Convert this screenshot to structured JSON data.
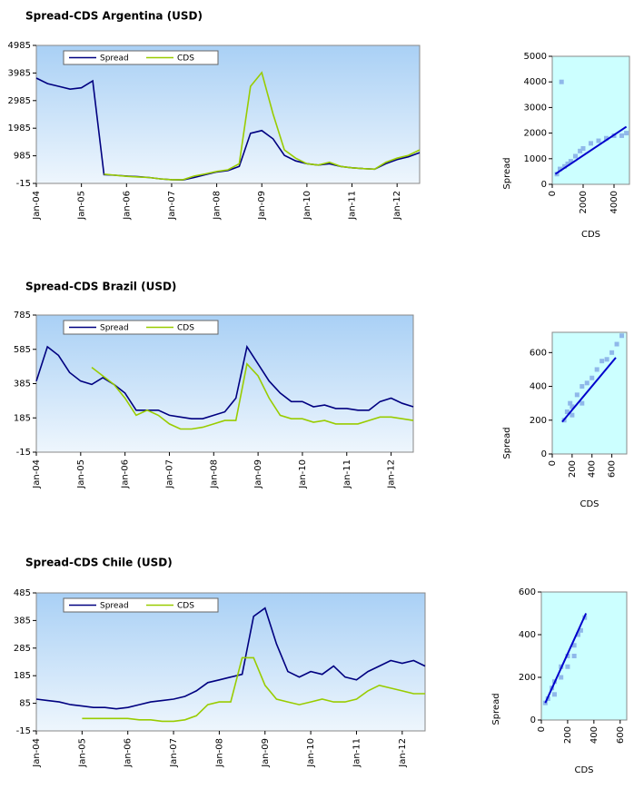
{
  "chart_data": [
    {
      "type": "line",
      "title": "Spread-CDS Argentina (USD)",
      "categories": [
        "Jan-04",
        null,
        null,
        null,
        "Jan-05",
        null,
        null,
        null,
        "Jan-06",
        null,
        null,
        null,
        "Jan-07",
        null,
        null,
        null,
        "Jan-08",
        null,
        null,
        null,
        "Jan-09",
        null,
        null,
        null,
        "Jan-10",
        null,
        null,
        null,
        "Jan-11",
        null,
        null,
        null,
        "Jan-12",
        null,
        null
      ],
      "series": [
        {
          "name": "Spread",
          "color": "#000080",
          "values": [
            3800,
            3600,
            3500,
            3400,
            3450,
            3700,
            300,
            280,
            250,
            230,
            200,
            150,
            120,
            110,
            200,
            300,
            400,
            450,
            600,
            1800,
            1900,
            1600,
            1000,
            800,
            700,
            650,
            700,
            600,
            550,
            520,
            500,
            700,
            850,
            950,
            1100
          ]
        },
        {
          "name": "CDS",
          "color": "#99cc00",
          "values": [
            null,
            null,
            null,
            null,
            null,
            null,
            320,
            280,
            240,
            220,
            200,
            150,
            120,
            120,
            250,
            330,
            420,
            480,
            700,
            3500,
            4000,
            2500,
            1200,
            900,
            700,
            650,
            750,
            600,
            550,
            520,
            500,
            750,
            900,
            1000,
            1200
          ]
        }
      ],
      "ylim": [
        -15,
        4985
      ],
      "yticks": [
        -15,
        985,
        1985,
        2985,
        3985,
        4985
      ]
    },
    {
      "type": "scatter",
      "xlabel": "CDS",
      "ylabel": "Spread",
      "color": "#8fb8ea",
      "fit_color": "#0000cc",
      "points": {
        "x": [
          300,
          500,
          800,
          1000,
          1200,
          1500,
          1800,
          2000,
          2500,
          3000,
          3500,
          4000,
          4500,
          600,
          4800
        ],
        "y": [
          400,
          600,
          700,
          800,
          900,
          1100,
          1300,
          1400,
          1600,
          1700,
          1800,
          1900,
          1900,
          4000,
          2000
        ]
      },
      "fit": {
        "x": [
          200,
          4800
        ],
        "y": [
          400,
          2250
        ]
      },
      "xlim": [
        0,
        5000
      ],
      "xticks": [
        0,
        2000,
        4000
      ],
      "ylim": [
        0,
        5000
      ],
      "yticks": [
        0,
        1000,
        2000,
        3000,
        4000,
        5000
      ]
    },
    {
      "type": "line",
      "title": "Spread-CDS Brazil (USD)",
      "categories": [
        "Jan-04",
        null,
        null,
        null,
        "Jan-05",
        null,
        null,
        null,
        "Jan-06",
        null,
        null,
        null,
        "Jan-07",
        null,
        null,
        null,
        "Jan-08",
        null,
        null,
        null,
        "Jan-09",
        null,
        null,
        null,
        "Jan-10",
        null,
        null,
        null,
        "Jan-11",
        null,
        null,
        null,
        "Jan-12",
        null,
        null
      ],
      "series": [
        {
          "name": "Spread",
          "color": "#000080",
          "values": [
            400,
            600,
            550,
            450,
            400,
            380,
            420,
            380,
            330,
            230,
            230,
            230,
            200,
            190,
            180,
            180,
            200,
            220,
            300,
            600,
            500,
            400,
            330,
            280,
            280,
            250,
            260,
            240,
            240,
            230,
            230,
            280,
            300,
            270,
            250
          ]
        },
        {
          "name": "CDS",
          "color": "#99cc00",
          "values": [
            null,
            null,
            null,
            null,
            null,
            480,
            430,
            380,
            300,
            200,
            230,
            200,
            150,
            120,
            120,
            130,
            150,
            170,
            170,
            500,
            430,
            300,
            200,
            180,
            180,
            160,
            170,
            150,
            150,
            150,
            170,
            190,
            190,
            180,
            170
          ]
        }
      ],
      "ylim": [
        -15,
        785
      ],
      "yticks": [
        -15,
        185,
        385,
        585,
        785
      ]
    },
    {
      "type": "scatter",
      "xlabel": "CDS",
      "ylabel": "Spread",
      "color": "#8fb8ea",
      "fit_color": "#0000cc",
      "points": {
        "x": [
          120,
          150,
          180,
          200,
          250,
          300,
          350,
          400,
          450,
          500,
          550,
          600,
          650,
          700,
          300,
          200
        ],
        "y": [
          200,
          250,
          300,
          280,
          350,
          400,
          420,
          450,
          500,
          550,
          560,
          600,
          650,
          700,
          300,
          230
        ]
      },
      "fit": {
        "x": [
          100,
          640
        ],
        "y": [
          190,
          570
        ]
      },
      "xlim": [
        0,
        750
      ],
      "xticks": [
        0,
        200,
        400,
        600
      ],
      "ylim": [
        0,
        720
      ],
      "yticks": [
        0,
        200,
        400,
        600
      ]
    },
    {
      "type": "line",
      "title": "Spread-CDS Chile (USD)",
      "categories": [
        "Jan-04",
        null,
        null,
        null,
        "Jan-05",
        null,
        null,
        null,
        "Jan-06",
        null,
        null,
        null,
        "Jan-07",
        null,
        null,
        null,
        "Jan-08",
        null,
        null,
        null,
        "Jan-09",
        null,
        null,
        null,
        "Jan-10",
        null,
        null,
        null,
        "Jan-11",
        null,
        null,
        null,
        "Jan-12",
        null,
        null
      ],
      "series": [
        {
          "name": "Spread",
          "color": "#000080",
          "values": [
            100,
            95,
            90,
            80,
            75,
            70,
            70,
            65,
            70,
            80,
            90,
            95,
            100,
            110,
            130,
            160,
            170,
            180,
            190,
            400,
            430,
            300,
            200,
            180,
            200,
            190,
            220,
            180,
            170,
            200,
            220,
            240,
            230,
            240,
            220
          ]
        },
        {
          "name": "CDS",
          "color": "#99cc00",
          "values": [
            null,
            null,
            null,
            null,
            30,
            30,
            30,
            30,
            30,
            25,
            25,
            20,
            20,
            25,
            40,
            80,
            90,
            90,
            250,
            250,
            150,
            100,
            90,
            80,
            90,
            100,
            90,
            90,
            100,
            130,
            150,
            140,
            130,
            120,
            120
          ]
        }
      ],
      "ylim": [
        -15,
        485
      ],
      "yticks": [
        -15,
        85,
        185,
        285,
        385,
        485
      ]
    },
    {
      "type": "scatter",
      "xlabel": "CDS",
      "ylabel": "Spread",
      "color": "#8fb8ea",
      "fit_color": "#0000cc",
      "points": {
        "x": [
          30,
          50,
          80,
          100,
          150,
          200,
          250,
          280,
          300,
          330,
          150,
          200,
          250,
          100
        ],
        "y": [
          80,
          100,
          150,
          180,
          250,
          300,
          350,
          400,
          420,
          480,
          200,
          250,
          300,
          120
        ]
      },
      "fit": {
        "x": [
          30,
          340
        ],
        "y": [
          80,
          500
        ]
      },
      "xlim": [
        0,
        650
      ],
      "xticks": [
        0,
        200,
        400,
        600
      ],
      "ylim": [
        0,
        600
      ],
      "yticks": [
        0,
        200,
        400,
        600
      ]
    }
  ]
}
